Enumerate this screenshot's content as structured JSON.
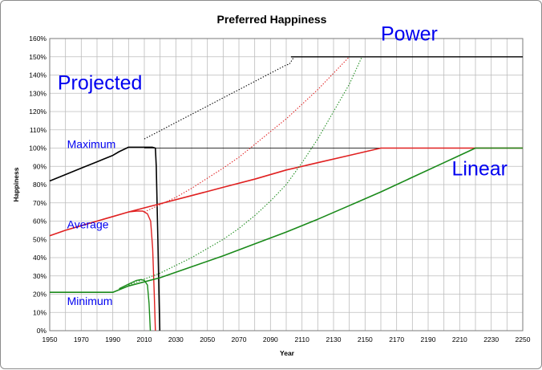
{
  "chart_data": {
    "type": "line",
    "title": "Preferred Happiness",
    "xlabel": "Year",
    "ylabel": "Happiness",
    "xlim": [
      1950,
      2250
    ],
    "ylim": [
      0,
      160
    ],
    "x_ticks": [
      1950,
      1970,
      1990,
      2010,
      2030,
      2050,
      2070,
      2090,
      2110,
      2130,
      2150,
      2170,
      2190,
      2210,
      2230,
      2250
    ],
    "x_tick_labels": [
      "1950",
      "1970",
      "1990",
      "2010",
      "2030",
      "2050",
      "2070",
      "2090",
      "2110",
      "2130",
      "2150",
      "2170",
      "2190",
      "2210",
      "2230",
      "2250"
    ],
    "y_ticks": [
      0,
      10,
      20,
      30,
      40,
      50,
      60,
      70,
      80,
      90,
      100,
      110,
      120,
      130,
      140,
      150,
      160
    ],
    "y_tick_labels": [
      "0%",
      "10%",
      "20%",
      "30%",
      "40%",
      "50%",
      "60%",
      "70%",
      "80%",
      "90%",
      "100%",
      "110%",
      "120%",
      "130%",
      "140%",
      "150%",
      "160%"
    ],
    "grid": true,
    "colors": {
      "black": "#000000",
      "red": "#e02020",
      "green": "#1a8a1a",
      "annotation": "#0000f0"
    },
    "annotations": [
      {
        "text": "Projected",
        "x": 1955,
        "y": 132,
        "size": "large"
      },
      {
        "text": "Power",
        "x": 2160,
        "y": 159,
        "size": "large"
      },
      {
        "text": "Linear",
        "x": 2205,
        "y": 85,
        "size": "large"
      },
      {
        "text": "Maximum",
        "x": 1961,
        "y": 100,
        "size": "small"
      },
      {
        "text": "Average",
        "x": 1961,
        "y": 56,
        "size": "small"
      },
      {
        "text": "Minimum",
        "x": 1961,
        "y": 14,
        "size": "small"
      }
    ],
    "series": [
      {
        "color": "#000000",
        "style": "solid",
        "width": 1.6,
        "points": [
          [
            1950,
            82
          ],
          [
            1960,
            85.5
          ],
          [
            1970,
            89
          ],
          [
            1980,
            92.5
          ],
          [
            1990,
            96
          ],
          [
            1994,
            98
          ],
          [
            2000,
            100.5
          ],
          [
            2010,
            100.5
          ],
          [
            2015,
            100.5
          ],
          [
            2017,
            100
          ],
          [
            2017.6,
            90
          ],
          [
            2018.6,
            50
          ],
          [
            2019.4,
            15
          ],
          [
            2019.8,
            0
          ]
        ]
      },
      {
        "color": "#000000",
        "style": "dotted",
        "width": 1.1,
        "points": [
          [
            2010,
            105
          ],
          [
            2020,
            109.5
          ],
          [
            2030,
            114
          ],
          [
            2040,
            118.5
          ],
          [
            2050,
            123
          ],
          [
            2060,
            127.5
          ],
          [
            2070,
            132
          ],
          [
            2080,
            136.5
          ],
          [
            2090,
            141
          ],
          [
            2100,
            145.5
          ],
          [
            2102,
            146
          ],
          [
            2105,
            150
          ]
        ]
      },
      {
        "color": "#000000",
        "style": "solid",
        "width": 1.3,
        "points": [
          [
            2103,
            150
          ],
          [
            2250,
            150
          ]
        ]
      },
      {
        "color": "#000000",
        "style": "solid",
        "width": 0.7,
        "points": [
          [
            2010,
            100
          ],
          [
            2250,
            100
          ]
        ]
      },
      {
        "color": "#e02020",
        "style": "solid",
        "width": 1.6,
        "points": [
          [
            1950,
            52
          ],
          [
            1960,
            55
          ],
          [
            1970,
            57.5
          ],
          [
            1980,
            60
          ],
          [
            1990,
            62.5
          ],
          [
            2000,
            65
          ],
          [
            2020,
            69.5
          ],
          [
            2040,
            74
          ],
          [
            2060,
            78.5
          ],
          [
            2080,
            83
          ],
          [
            2100,
            88
          ],
          [
            2120,
            92
          ],
          [
            2140,
            96
          ],
          [
            2160,
            100
          ],
          [
            2250,
            100
          ]
        ]
      },
      {
        "color": "#e02020",
        "style": "solid",
        "width": 1.4,
        "points": [
          [
            2000,
            65
          ],
          [
            2005,
            65.5
          ],
          [
            2009,
            65.5
          ],
          [
            2012,
            64
          ],
          [
            2014,
            60
          ],
          [
            2015.3,
            45
          ],
          [
            2016.3,
            20
          ],
          [
            2017,
            0
          ]
        ]
      },
      {
        "color": "#e02020",
        "style": "dotted",
        "width": 1.1,
        "points": [
          [
            2010,
            65
          ],
          [
            2020,
            69
          ],
          [
            2030,
            73
          ],
          [
            2040,
            78
          ],
          [
            2050,
            83.5
          ],
          [
            2060,
            89
          ],
          [
            2070,
            95
          ],
          [
            2080,
            102
          ],
          [
            2090,
            109
          ],
          [
            2100,
            116
          ],
          [
            2110,
            124
          ],
          [
            2120,
            132
          ],
          [
            2130,
            141
          ],
          [
            2140,
            150
          ]
        ]
      },
      {
        "color": "#1a8a1a",
        "style": "solid",
        "width": 1.6,
        "points": [
          [
            1950,
            21
          ],
          [
            1990,
            21
          ],
          [
            2000,
            24.5
          ],
          [
            2020,
            29
          ],
          [
            2040,
            35
          ],
          [
            2060,
            41
          ],
          [
            2080,
            47.5
          ],
          [
            2100,
            54
          ],
          [
            2120,
            61
          ],
          [
            2140,
            68.5
          ],
          [
            2160,
            76
          ],
          [
            2180,
            84
          ],
          [
            2200,
            92
          ],
          [
            2210,
            96
          ],
          [
            2220,
            100
          ],
          [
            2250,
            100
          ]
        ]
      },
      {
        "color": "#1a8a1a",
        "style": "solid",
        "width": 1.4,
        "points": [
          [
            1994,
            23
          ],
          [
            2000,
            25.5
          ],
          [
            2005,
            27.5
          ],
          [
            2008,
            28
          ],
          [
            2010,
            27.5
          ],
          [
            2012,
            25
          ],
          [
            2013,
            15
          ],
          [
            2013.8,
            0
          ]
        ]
      },
      {
        "color": "#1a8a1a",
        "style": "dotted",
        "width": 1.1,
        "points": [
          [
            2000,
            25
          ],
          [
            2020,
            31.5
          ],
          [
            2040,
            40
          ],
          [
            2060,
            50
          ],
          [
            2070,
            56
          ],
          [
            2080,
            63
          ],
          [
            2090,
            71
          ],
          [
            2100,
            80
          ],
          [
            2110,
            92
          ],
          [
            2120,
            105
          ],
          [
            2130,
            120
          ],
          [
            2140,
            135
          ],
          [
            2148,
            150
          ]
        ]
      }
    ]
  }
}
